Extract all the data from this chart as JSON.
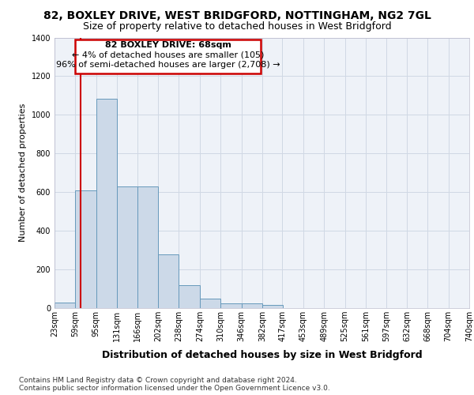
{
  "title_line1": "82, BOXLEY DRIVE, WEST BRIDGFORD, NOTTINGHAM, NG2 7GL",
  "title_line2": "Size of property relative to detached houses in West Bridgford",
  "xlabel": "Distribution of detached houses by size in West Bridgford",
  "ylabel": "Number of detached properties",
  "footnote1": "Contains HM Land Registry data © Crown copyright and database right 2024.",
  "footnote2": "Contains public sector information licensed under the Open Government Licence v3.0.",
  "annotation_line1": "82 BOXLEY DRIVE: 68sqm",
  "annotation_line2": "← 4% of detached houses are smaller (105)",
  "annotation_line3": "96% of semi-detached houses are larger (2,708) →",
  "property_size": 68,
  "bar_edges": [
    23,
    59,
    95,
    131,
    166,
    202,
    238,
    274,
    310,
    346,
    382,
    417,
    453,
    489,
    525,
    561,
    597,
    632,
    668,
    704,
    740
  ],
  "bar_heights": [
    30,
    610,
    1085,
    630,
    630,
    280,
    120,
    48,
    25,
    25,
    15,
    0,
    0,
    0,
    0,
    0,
    0,
    0,
    0,
    0
  ],
  "bar_color": "#ccd9e8",
  "bar_edge_color": "#6699bb",
  "red_line_color": "#cc0000",
  "annotation_box_color": "#cc0000",
  "grid_color": "#d0d8e4",
  "background_color": "#eef2f8",
  "ylim": [
    0,
    1400
  ],
  "yticks": [
    0,
    200,
    400,
    600,
    800,
    1000,
    1200,
    1400
  ],
  "title1_fontsize": 10,
  "title2_fontsize": 9,
  "ylabel_fontsize": 8,
  "xlabel_fontsize": 9,
  "tick_fontsize": 7,
  "annot_fontsize": 8,
  "footnote_fontsize": 6.5
}
